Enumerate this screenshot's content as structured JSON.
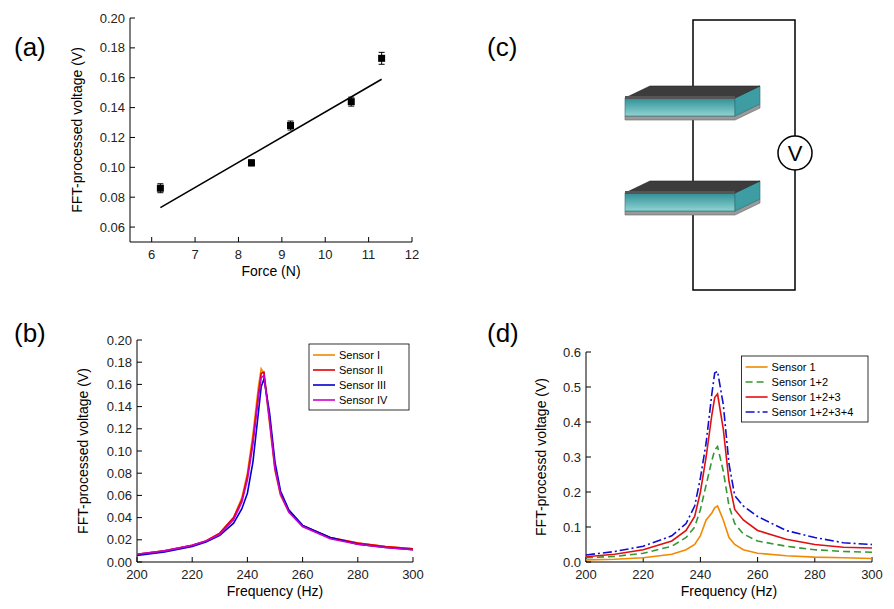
{
  "chart_data": [
    {
      "type": "scatter",
      "title": "(a)",
      "x_label": "Force (N)",
      "y_label": "FFT-processed voltage (V)",
      "xlim": [
        5.5,
        12
      ],
      "ylim": [
        0.05,
        0.2
      ],
      "xticks": [
        6,
        7,
        8,
        9,
        10,
        11,
        12
      ],
      "yticks": [
        0.06,
        0.08,
        {
          "value": 0.1,
          "label": "0.10"
        },
        0.12,
        0.14,
        0.16,
        0.18,
        {
          "value": 0.2,
          "label": "0.20"
        }
      ],
      "series": [
        {
          "type": "scatter",
          "marker": "square",
          "color": "#000000",
          "x": [
            6.2,
            8.3,
            9.2,
            10.6,
            11.3
          ],
          "values": [
            0.086,
            0.103,
            0.128,
            0.144,
            0.173
          ],
          "errors": [
            0.003,
            0.002,
            0.003,
            0.003,
            0.004
          ]
        },
        {
          "type": "line",
          "line_style": "solid",
          "color": "#000000",
          "x": [
            6.2,
            11.3
          ],
          "values": [
            0.073,
            0.159
          ]
        }
      ]
    },
    {
      "type": "line",
      "title": "(b)",
      "x_label": "Frequency (Hz)",
      "y_label": "FFT-processed voltage (V)",
      "xlim": [
        200,
        300
      ],
      "ylim": [
        0,
        0.2
      ],
      "xticks": [
        200,
        220,
        240,
        260,
        280,
        300
      ],
      "yticks": [
        {
          "value": 0,
          "label": "0.00"
        },
        0.02,
        0.04,
        0.06,
        0.08,
        {
          "value": 0.1,
          "label": "0.10"
        },
        0.12,
        0.14,
        0.16,
        0.18,
        {
          "value": 0.2,
          "label": "0.20"
        }
      ],
      "legend": "upper right",
      "x": [
        200,
        210,
        220,
        225,
        230,
        235,
        238,
        240,
        242,
        244,
        245,
        246,
        248,
        250,
        252,
        255,
        260,
        270,
        280,
        290,
        300
      ],
      "series": [
        {
          "name": "Sensor I",
          "color": "#f08a00",
          "line_style": "solid",
          "values": [
            0.007,
            0.01,
            0.015,
            0.019,
            0.026,
            0.04,
            0.058,
            0.08,
            0.115,
            0.158,
            0.174,
            0.17,
            0.125,
            0.082,
            0.06,
            0.045,
            0.032,
            0.022,
            0.017,
            0.014,
            0.012
          ]
        },
        {
          "name": "Sensor II",
          "color": "#e00000",
          "line_style": "solid",
          "values": [
            0.007,
            0.01,
            0.015,
            0.019,
            0.026,
            0.04,
            0.056,
            0.077,
            0.11,
            0.152,
            0.17,
            0.171,
            0.13,
            0.085,
            0.062,
            0.046,
            0.033,
            0.022,
            0.017,
            0.014,
            0.012
          ]
        },
        {
          "name": "Sensor III",
          "color": "#0000cc",
          "line_style": "solid",
          "values": [
            0.006,
            0.009,
            0.014,
            0.018,
            0.024,
            0.035,
            0.048,
            0.062,
            0.09,
            0.135,
            0.158,
            0.165,
            0.135,
            0.09,
            0.064,
            0.047,
            0.033,
            0.022,
            0.016,
            0.013,
            0.011
          ]
        },
        {
          "name": "Sensor IV",
          "color": "#cc00cc",
          "line_style": "solid",
          "values": [
            0.007,
            0.01,
            0.015,
            0.019,
            0.025,
            0.038,
            0.054,
            0.074,
            0.106,
            0.148,
            0.166,
            0.168,
            0.128,
            0.084,
            0.061,
            0.045,
            0.032,
            0.021,
            0.016,
            0.013,
            0.011
          ]
        }
      ]
    },
    {
      "type": "line",
      "title": "(d)",
      "x_label": "Frequency (Hz)",
      "y_label": "FFT-processd voltage (V)",
      "xlim": [
        200,
        300
      ],
      "ylim": [
        0,
        0.6
      ],
      "xticks": [
        200,
        220,
        240,
        260,
        280,
        300
      ],
      "yticks": [
        {
          "value": 0,
          "label": "0.0"
        },
        0.1,
        0.2,
        0.3,
        0.4,
        0.5,
        0.6
      ],
      "legend": "upper right",
      "x": [
        200,
        210,
        220,
        230,
        235,
        238,
        240,
        242,
        244,
        245,
        246,
        248,
        250,
        252,
        255,
        260,
        270,
        280,
        290,
        300
      ],
      "series": [
        {
          "name": "Sensor 1",
          "color": "#f08a00",
          "line_style": "solid",
          "values": [
            0.006,
            0.008,
            0.012,
            0.022,
            0.035,
            0.05,
            0.075,
            0.12,
            0.14,
            0.155,
            0.16,
            0.12,
            0.07,
            0.05,
            0.035,
            0.025,
            0.018,
            0.014,
            0.012,
            0.01
          ]
        },
        {
          "name": "Sensor 1+2",
          "color": "#339933",
          "line_style": "dashed",
          "values": [
            0.012,
            0.016,
            0.025,
            0.045,
            0.07,
            0.1,
            0.15,
            0.22,
            0.29,
            0.32,
            0.33,
            0.26,
            0.16,
            0.11,
            0.08,
            0.06,
            0.045,
            0.035,
            0.03,
            0.028
          ]
        },
        {
          "name": "Sensor 1+2+3",
          "color": "#e01010",
          "line_style": "solid",
          "values": [
            0.015,
            0.022,
            0.035,
            0.06,
            0.09,
            0.13,
            0.2,
            0.3,
            0.42,
            0.47,
            0.48,
            0.38,
            0.23,
            0.15,
            0.12,
            0.09,
            0.065,
            0.05,
            0.042,
            0.04
          ]
        },
        {
          "name": "Sensor 1+2+3+4",
          "color": "#1010cc",
          "line_style": "dashdot",
          "values": [
            0.02,
            0.03,
            0.045,
            0.075,
            0.11,
            0.16,
            0.24,
            0.34,
            0.48,
            0.54,
            0.545,
            0.45,
            0.28,
            0.19,
            0.16,
            0.13,
            0.09,
            0.07,
            0.055,
            0.05
          ]
        }
      ]
    }
  ],
  "diagram": {
    "label": "(c)",
    "meter_label": "V"
  }
}
